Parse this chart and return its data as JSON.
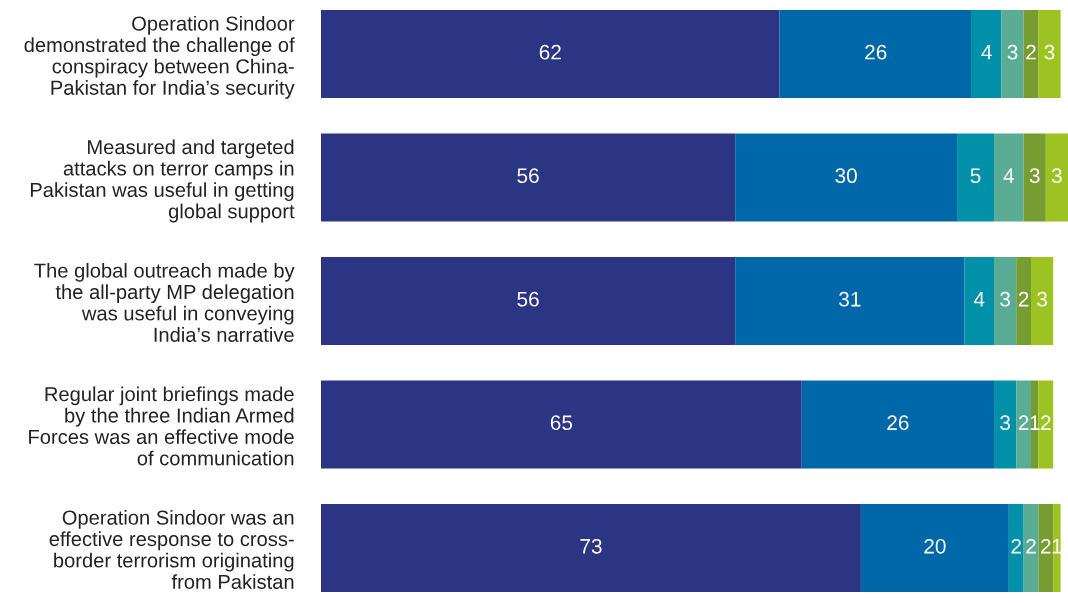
{
  "chart_data": {
    "type": "bar",
    "orientation": "horizontal",
    "stacked": true,
    "data_labels": true,
    "tick_labels": "y",
    "categories": [
      "Operation Sindoor\ndemonstrated the challenge of\nconspiracy between China-\nPakistan for India’s security",
      "Measured and targeted\nattacks on terror camps in\nPakistan was useful in getting\nglobal support",
      "The global outreach made by\nthe all-party MP delegation\nwas useful in conveying\nIndia’s narrative",
      "Regular joint briefings made\nby the three Indian Armed\nForces was an effective mode\nof communication",
      "Operation Sindoor was an\neffective response to cross-\nborder terrorism originating\nfrom Pakistan"
    ],
    "series": [
      {
        "color": "#2b3584",
        "values": [
          62,
          56,
          56,
          65,
          73
        ]
      },
      {
        "color": "#0068a8",
        "values": [
          26,
          30,
          31,
          26,
          20
        ]
      },
      {
        "color": "#0090a8",
        "values": [
          4,
          5,
          4,
          3,
          2
        ]
      },
      {
        "color": "#5aac94",
        "values": [
          3,
          4,
          3,
          2,
          2
        ]
      },
      {
        "color": "#769c32",
        "values": [
          2,
          3,
          2,
          1,
          2
        ]
      },
      {
        "color": "#9cc321",
        "values": [
          3,
          3,
          3,
          2,
          1
        ]
      }
    ]
  }
}
